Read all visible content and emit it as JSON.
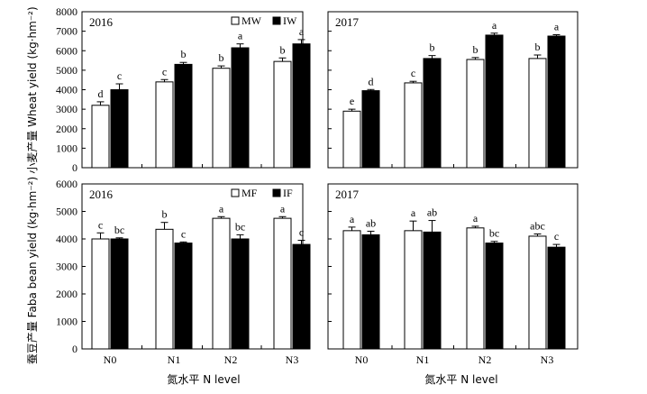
{
  "figure": {
    "y_label_top": "小麦产量 Wheat yield (kg·hm⁻²)",
    "y_label_bottom": "蚕豆产量 Faba bean yield (kg·hm⁻²)",
    "x_label": "氮水平 N level"
  },
  "chart_data": [
    {
      "type": "bar",
      "panel": "wheat-2016",
      "title": "2016",
      "categories": [
        "N0",
        "N1",
        "N2",
        "N3"
      ],
      "ylim": [
        0,
        8000
      ],
      "yticks": [
        0,
        1000,
        2000,
        3000,
        4000,
        5000,
        6000,
        7000,
        8000
      ],
      "show_xticklabels": false,
      "show_yticklabels": true,
      "legend": "top-right",
      "series": [
        {
          "name": "MW",
          "color": "#ffffff",
          "values": [
            3200,
            4400,
            5100,
            5450
          ],
          "errors": [
            180,
            120,
            120,
            180
          ],
          "letters": [
            "d",
            "c",
            "b",
            "b"
          ]
        },
        {
          "name": "IW",
          "color": "#000000",
          "values": [
            4000,
            5300,
            6150,
            6350
          ],
          "errors": [
            300,
            100,
            200,
            220
          ],
          "letters": [
            "c",
            "b",
            "a",
            "a"
          ]
        }
      ]
    },
    {
      "type": "bar",
      "panel": "wheat-2017",
      "title": "2017",
      "categories": [
        "N0",
        "N1",
        "N2",
        "N3"
      ],
      "ylim": [
        0,
        8000
      ],
      "yticks": [
        0,
        1000,
        2000,
        3000,
        4000,
        5000,
        6000,
        7000,
        8000
      ],
      "show_xticklabels": false,
      "show_yticklabels": false,
      "legend": "none",
      "series": [
        {
          "name": "MW",
          "color": "#ffffff",
          "values": [
            2900,
            4350,
            5550,
            5600
          ],
          "errors": [
            100,
            80,
            100,
            180
          ],
          "letters": [
            "e",
            "c",
            "b",
            "b"
          ]
        },
        {
          "name": "IW",
          "color": "#000000",
          "values": [
            3950,
            5600,
            6800,
            6750
          ],
          "errors": [
            60,
            150,
            100,
            70
          ],
          "letters": [
            "d",
            "b",
            "a",
            "a"
          ]
        }
      ]
    },
    {
      "type": "bar",
      "panel": "faba-2016",
      "title": "2016",
      "categories": [
        "N0",
        "N1",
        "N2",
        "N3"
      ],
      "ylim": [
        0,
        6000
      ],
      "yticks": [
        0,
        1000,
        2000,
        3000,
        4000,
        5000,
        6000
      ],
      "show_xticklabels": true,
      "show_yticklabels": true,
      "legend": "top-right",
      "series": [
        {
          "name": "MF",
          "color": "#ffffff",
          "values": [
            4000,
            4350,
            4750,
            4750
          ],
          "errors": [
            220,
            250,
            60,
            60
          ],
          "letters": [
            "c",
            "b",
            "a",
            "a"
          ]
        },
        {
          "name": "IF",
          "color": "#000000",
          "values": [
            4000,
            3850,
            4000,
            3800
          ],
          "errors": [
            40,
            40,
            150,
            150
          ],
          "letters": [
            "bc",
            "c",
            "bc",
            "c"
          ]
        }
      ]
    },
    {
      "type": "bar",
      "panel": "faba-2017",
      "title": "2017",
      "categories": [
        "N0",
        "N1",
        "N2",
        "N3"
      ],
      "ylim": [
        0,
        6000
      ],
      "yticks": [
        0,
        1000,
        2000,
        3000,
        4000,
        5000,
        6000
      ],
      "show_xticklabels": true,
      "show_yticklabels": false,
      "legend": "none",
      "series": [
        {
          "name": "MF",
          "color": "#ffffff",
          "values": [
            4300,
            4300,
            4400,
            4100
          ],
          "errors": [
            130,
            350,
            60,
            80
          ],
          "letters": [
            "a",
            "a",
            "a",
            "abc"
          ]
        },
        {
          "name": "IF",
          "color": "#000000",
          "values": [
            4150,
            4250,
            3850,
            3700
          ],
          "errors": [
            130,
            420,
            60,
            100
          ],
          "letters": [
            "ab",
            "ab",
            "bc",
            "c"
          ]
        }
      ]
    }
  ]
}
